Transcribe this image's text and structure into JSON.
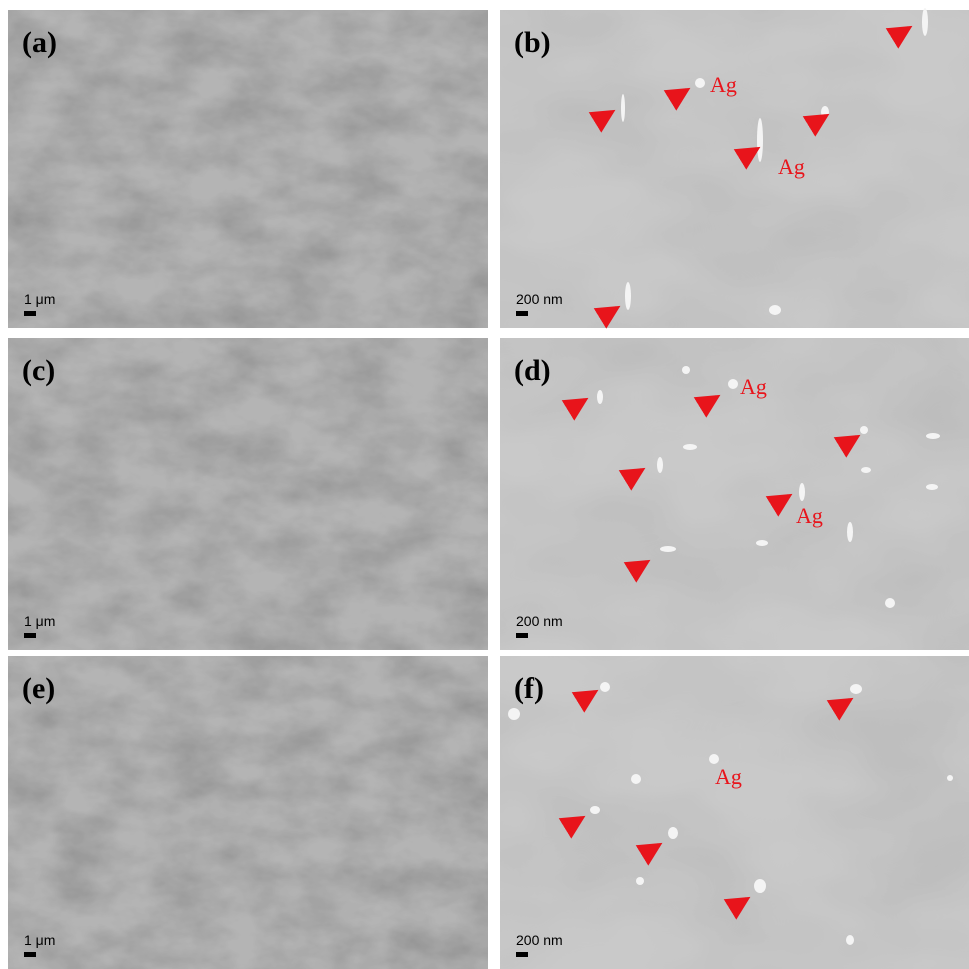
{
  "panels": [
    {
      "label": "(a)",
      "scale": "1 μm",
      "ag_labels": []
    },
    {
      "label": "(b)",
      "scale": "200 nm",
      "ag_labels": [
        "Ag",
        "Ag"
      ]
    },
    {
      "label": "(c)",
      "scale": "1 μm",
      "ag_labels": []
    },
    {
      "label": "(d)",
      "scale": "200 nm",
      "ag_labels": [
        "Ag",
        "Ag"
      ]
    },
    {
      "label": "(e)",
      "scale": "1 μm",
      "ag_labels": []
    },
    {
      "label": "(f)",
      "scale": "200 nm",
      "ag_labels": [
        "Ag"
      ]
    }
  ]
}
